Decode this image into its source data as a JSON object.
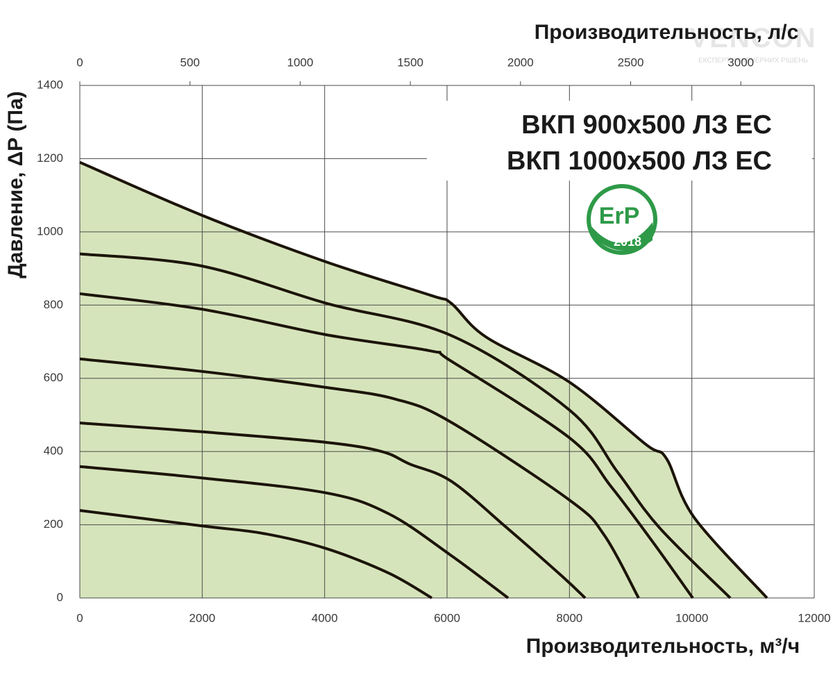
{
  "chart_data": {
    "type": "line",
    "title_lines": [
      "ВКП 900х500 ЛЗ ЕС",
      "ВКП 1000х500 ЛЗ ЕС"
    ],
    "xlabel": "Производительность, м³/ч",
    "x2label": "Производительность, л/с",
    "ylabel": "Давление, ΔР (Па)",
    "badge": {
      "text": "ErP",
      "year": "2018",
      "color": "#2e9a48"
    },
    "watermark": {
      "brand": "VENCON",
      "slogan": "ЕКСПЕРТ ІНЖЕНЕРНИХ РІШЕНЬ"
    },
    "xlim": [
      0,
      12000
    ],
    "xticks": [
      0,
      2000,
      4000,
      6000,
      8000,
      10000,
      12000
    ],
    "x2lim": [
      0,
      3333.3
    ],
    "x2ticks": [
      0,
      500,
      1000,
      1500,
      2000,
      2500,
      3000
    ],
    "ylim": [
      0,
      1400
    ],
    "yticks": [
      0,
      200,
      400,
      600,
      800,
      1000,
      1200,
      1400
    ],
    "grid": true,
    "fill_color": "#d6e4bb",
    "series": [
      {
        "color": "#1c1409",
        "fill": true,
        "x": [
          0,
          1985,
          4025,
          5727,
          6067,
          6635,
          7996,
          9244,
          9584,
          10037,
          11228
        ],
        "values": [
          1190,
          1046,
          918,
          827,
          805,
          713,
          590,
          420,
          381,
          220,
          0
        ]
      },
      {
        "color": "#1c1409",
        "x": [
          0,
          1985,
          4025,
          6067,
          7996,
          8790,
          9470,
          10627
        ],
        "values": [
          940,
          907,
          805,
          717,
          514,
          343,
          192,
          0
        ]
      },
      {
        "color": "#1c1409",
        "x": [
          0,
          1985,
          4025,
          5727,
          6067,
          7996,
          8677,
          9357,
          10015
        ],
        "values": [
          831,
          789,
          719,
          675,
          647,
          438,
          305,
          154,
          0
        ]
      },
      {
        "color": "#1c1409",
        "x": [
          0,
          1985,
          4025,
          5160,
          6067,
          7996,
          8563,
          9130
        ],
        "values": [
          653,
          619,
          575,
          543,
          480,
          268,
          173,
          0
        ]
      },
      {
        "color": "#1c1409",
        "x": [
          0,
          1985,
          4025,
          4933,
          5387,
          6067,
          6975,
          7882,
          8257
        ],
        "values": [
          478,
          454,
          425,
          400,
          366,
          319,
          192,
          59,
          0
        ]
      },
      {
        "color": "#1c1409",
        "x": [
          0,
          1985,
          4025,
          5047,
          6067,
          6998
        ],
        "values": [
          359,
          328,
          287,
          230,
          116,
          0
        ]
      },
      {
        "color": "#1c1409",
        "x": [
          0,
          1985,
          3006,
          4025,
          5047,
          5750
        ],
        "values": [
          239,
          197,
          176,
          135,
          68,
          0
        ]
      }
    ]
  }
}
